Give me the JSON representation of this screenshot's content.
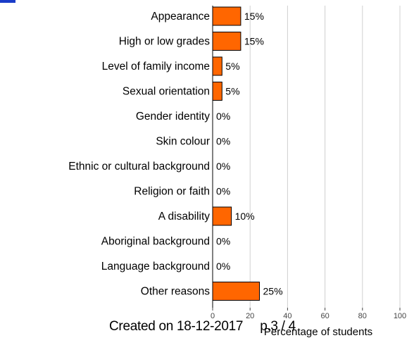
{
  "chart_data": {
    "type": "bar",
    "orientation": "horizontal",
    "categories": [
      "Appearance",
      "High or low grades",
      "Level of family income",
      "Sexual orientation",
      "Gender identity",
      "Skin colour",
      "Ethnic or cultural background",
      "Religion or faith",
      "A disability",
      "Aboriginal background",
      "Language background",
      "Other reasons"
    ],
    "values": [
      15,
      15,
      5,
      5,
      0,
      0,
      0,
      0,
      10,
      0,
      0,
      25
    ],
    "value_labels": [
      "15%",
      "15%",
      "5%",
      "5%",
      "0%",
      "0%",
      "0%",
      "0%",
      "10%",
      "0%",
      "0%",
      "25%"
    ],
    "xlabel": "Percentage of students",
    "xlim": [
      0,
      100
    ],
    "xticks": [
      0,
      20,
      40,
      60,
      80,
      100
    ],
    "grid": true,
    "bar_color": "#ff6600",
    "bar_stroke": "#000000",
    "grid_color": "#d0d0d0"
  },
  "footer": {
    "created": "Created on 18-12-2017",
    "page": "p.3 / 4"
  }
}
